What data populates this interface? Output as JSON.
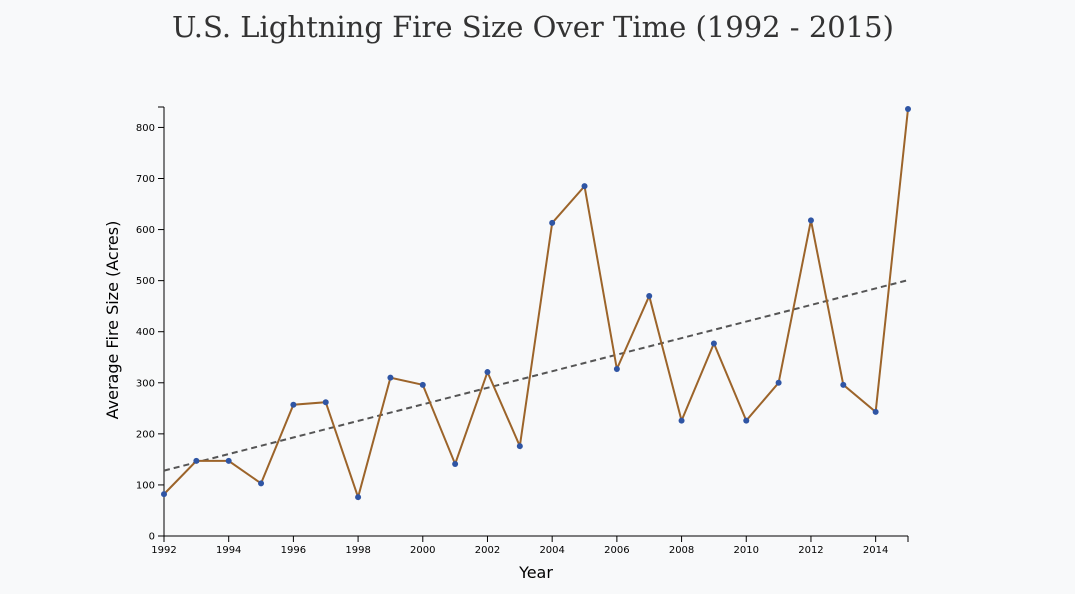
{
  "chart_data": {
    "type": "line",
    "title": "U.S. Lightning Fire Size Over Time (1992 - 2015)",
    "xlabel": "Year",
    "ylabel": "Average Fire Size (Acres)",
    "xlim": [
      1992,
      2015
    ],
    "ylim": [
      0,
      840
    ],
    "x_ticks": [
      1992,
      1994,
      1996,
      1998,
      2000,
      2002,
      2004,
      2006,
      2008,
      2010,
      2012,
      2014
    ],
    "y_ticks": [
      0,
      100,
      200,
      300,
      400,
      500,
      600,
      700,
      800
    ],
    "grid": false,
    "series": [
      {
        "x": [
          1992,
          1993,
          1994,
          1995,
          1996,
          1997,
          1998,
          1999,
          2000,
          2001,
          2002,
          2003,
          2004,
          2005,
          2006,
          2007,
          2008,
          2009,
          2010,
          2011,
          2012,
          2013,
          2014,
          2015
        ],
        "values": [
          82,
          147,
          147,
          103,
          257,
          262,
          76,
          310,
          296,
          141,
          321,
          176,
          613,
          685,
          327,
          470,
          226,
          377,
          226,
          300,
          618,
          296,
          243,
          836
        ]
      }
    ],
    "trendline": {
      "style": "dashed",
      "start": [
        1992,
        128
      ],
      "end": [
        2015,
        501
      ]
    },
    "colors": {
      "line": "#9c642a",
      "points": "#2f55a4",
      "trend": "#555555",
      "axis": "#000000"
    }
  }
}
